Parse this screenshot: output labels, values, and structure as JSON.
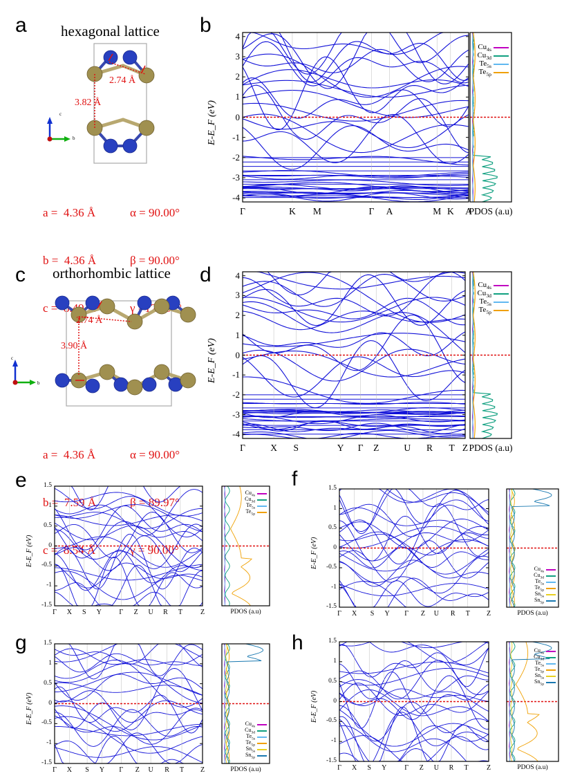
{
  "colors": {
    "bands": "#1010d8",
    "fermi": "#e01010",
    "cu4s": "#c000c0",
    "cu3d": "#10a080",
    "te5s": "#60b8f0",
    "te5p": "#f0a000",
    "sn5s": "#e8d020",
    "sn5p": "#1878b0",
    "te_atom": "#a09050",
    "cu_atom": "#2840c0"
  },
  "panels": {
    "a": "a",
    "b": "b",
    "c": "c",
    "d": "d",
    "e": "e",
    "f": "f",
    "g": "g",
    "h": "h"
  },
  "structure_a": {
    "title": "hexagonal lattice",
    "bond": "2.74 Å",
    "interlayer": "3.82 Å",
    "axes": {
      "c": "c",
      "b": "b"
    },
    "params": [
      "a =  4.36 Å",
      "b =  4.36 Å",
      "c =  8.49 Å"
    ],
    "angles": [
      "α = 90.00°",
      "β = 90.00°",
      "γ =120.00°"
    ]
  },
  "structure_c": {
    "title": "orthorhombic lattice",
    "bond": "2.74 Å",
    "interlayer": "3.90 Å",
    "axes": {
      "c": "c",
      "b": "b"
    },
    "params": [
      "a =  4.36 Å",
      "b =  7.59 Å",
      "c =  8.54 Å"
    ],
    "angles": [
      "α = 90.00°",
      "β = 89.97°",
      "γ = 90.00°"
    ]
  },
  "ylabel": "E-E_F (eV)",
  "pdos_label": "PDOS (a.u)",
  "legend4": [
    "Cu4s",
    "Cu3d",
    "Te5s",
    "Te5p"
  ],
  "legend6": [
    "Cu4s",
    "Cu3d",
    "Te5s",
    "Te5p",
    "Sn5s",
    "Sn5p"
  ],
  "chart_data": [
    {
      "panel": "b",
      "type": "line",
      "ylim": [
        -4.2,
        4.2
      ],
      "yticks": [
        "4",
        "3",
        "2",
        "1",
        "0",
        "-1",
        "-2",
        "-3",
        "-4"
      ],
      "xticks": [
        "Γ",
        "K",
        "M",
        "Γ",
        "A",
        "M",
        "K",
        "A"
      ],
      "fermi": 0
    },
    {
      "panel": "d",
      "type": "line",
      "ylim": [
        -4.2,
        4.2
      ],
      "yticks": [
        "4",
        "3",
        "2",
        "1",
        "0",
        "-1",
        "-2",
        "-3",
        "-4"
      ],
      "xticks": [
        "Γ",
        "X",
        "S",
        "Y",
        "Γ",
        "Z",
        "U",
        "R",
        "T",
        "Z"
      ],
      "fermi": 0
    },
    {
      "panel": "e",
      "type": "line",
      "ylim": [
        -1.5,
        1.5
      ],
      "yticks": [
        "1.5",
        "1",
        "0.5",
        "0",
        "-0.5",
        "-1",
        "-1.5"
      ],
      "xticks": [
        "Γ",
        "X",
        "S",
        "Y",
        "Γ",
        "Z",
        "U",
        "R",
        "T",
        "Z"
      ],
      "fermi": 0
    },
    {
      "panel": "f",
      "type": "line",
      "ylim": [
        -1.5,
        1.5
      ],
      "yticks": [
        "1.5",
        "1",
        "0.5",
        "0",
        "-0.5",
        "-1",
        "-1.5"
      ],
      "xticks": [
        "Γ",
        "X",
        "S",
        "Y",
        "Γ",
        "Z",
        "U",
        "R",
        "T",
        "Z"
      ],
      "fermi": 0
    },
    {
      "panel": "g",
      "type": "line",
      "ylim": [
        -1.5,
        1.5
      ],
      "yticks": [
        "1.5",
        "1",
        "0.5",
        "0",
        "-0.5",
        "-1",
        "-1.5"
      ],
      "xticks": [
        "Γ",
        "X",
        "S",
        "Y",
        "Γ",
        "Z",
        "U",
        "R",
        "T",
        "Z"
      ],
      "fermi": 0
    },
    {
      "panel": "h",
      "type": "line",
      "ylim": [
        -1.5,
        1.5
      ],
      "yticks": [
        "1.5",
        "1",
        "0.5",
        "0",
        "-0.5",
        "-1",
        "-1.5"
      ],
      "xticks": [
        "Γ",
        "X",
        "S",
        "Y",
        "Γ",
        "Z",
        "U",
        "R",
        "T",
        "Z"
      ],
      "fermi": 0
    }
  ]
}
